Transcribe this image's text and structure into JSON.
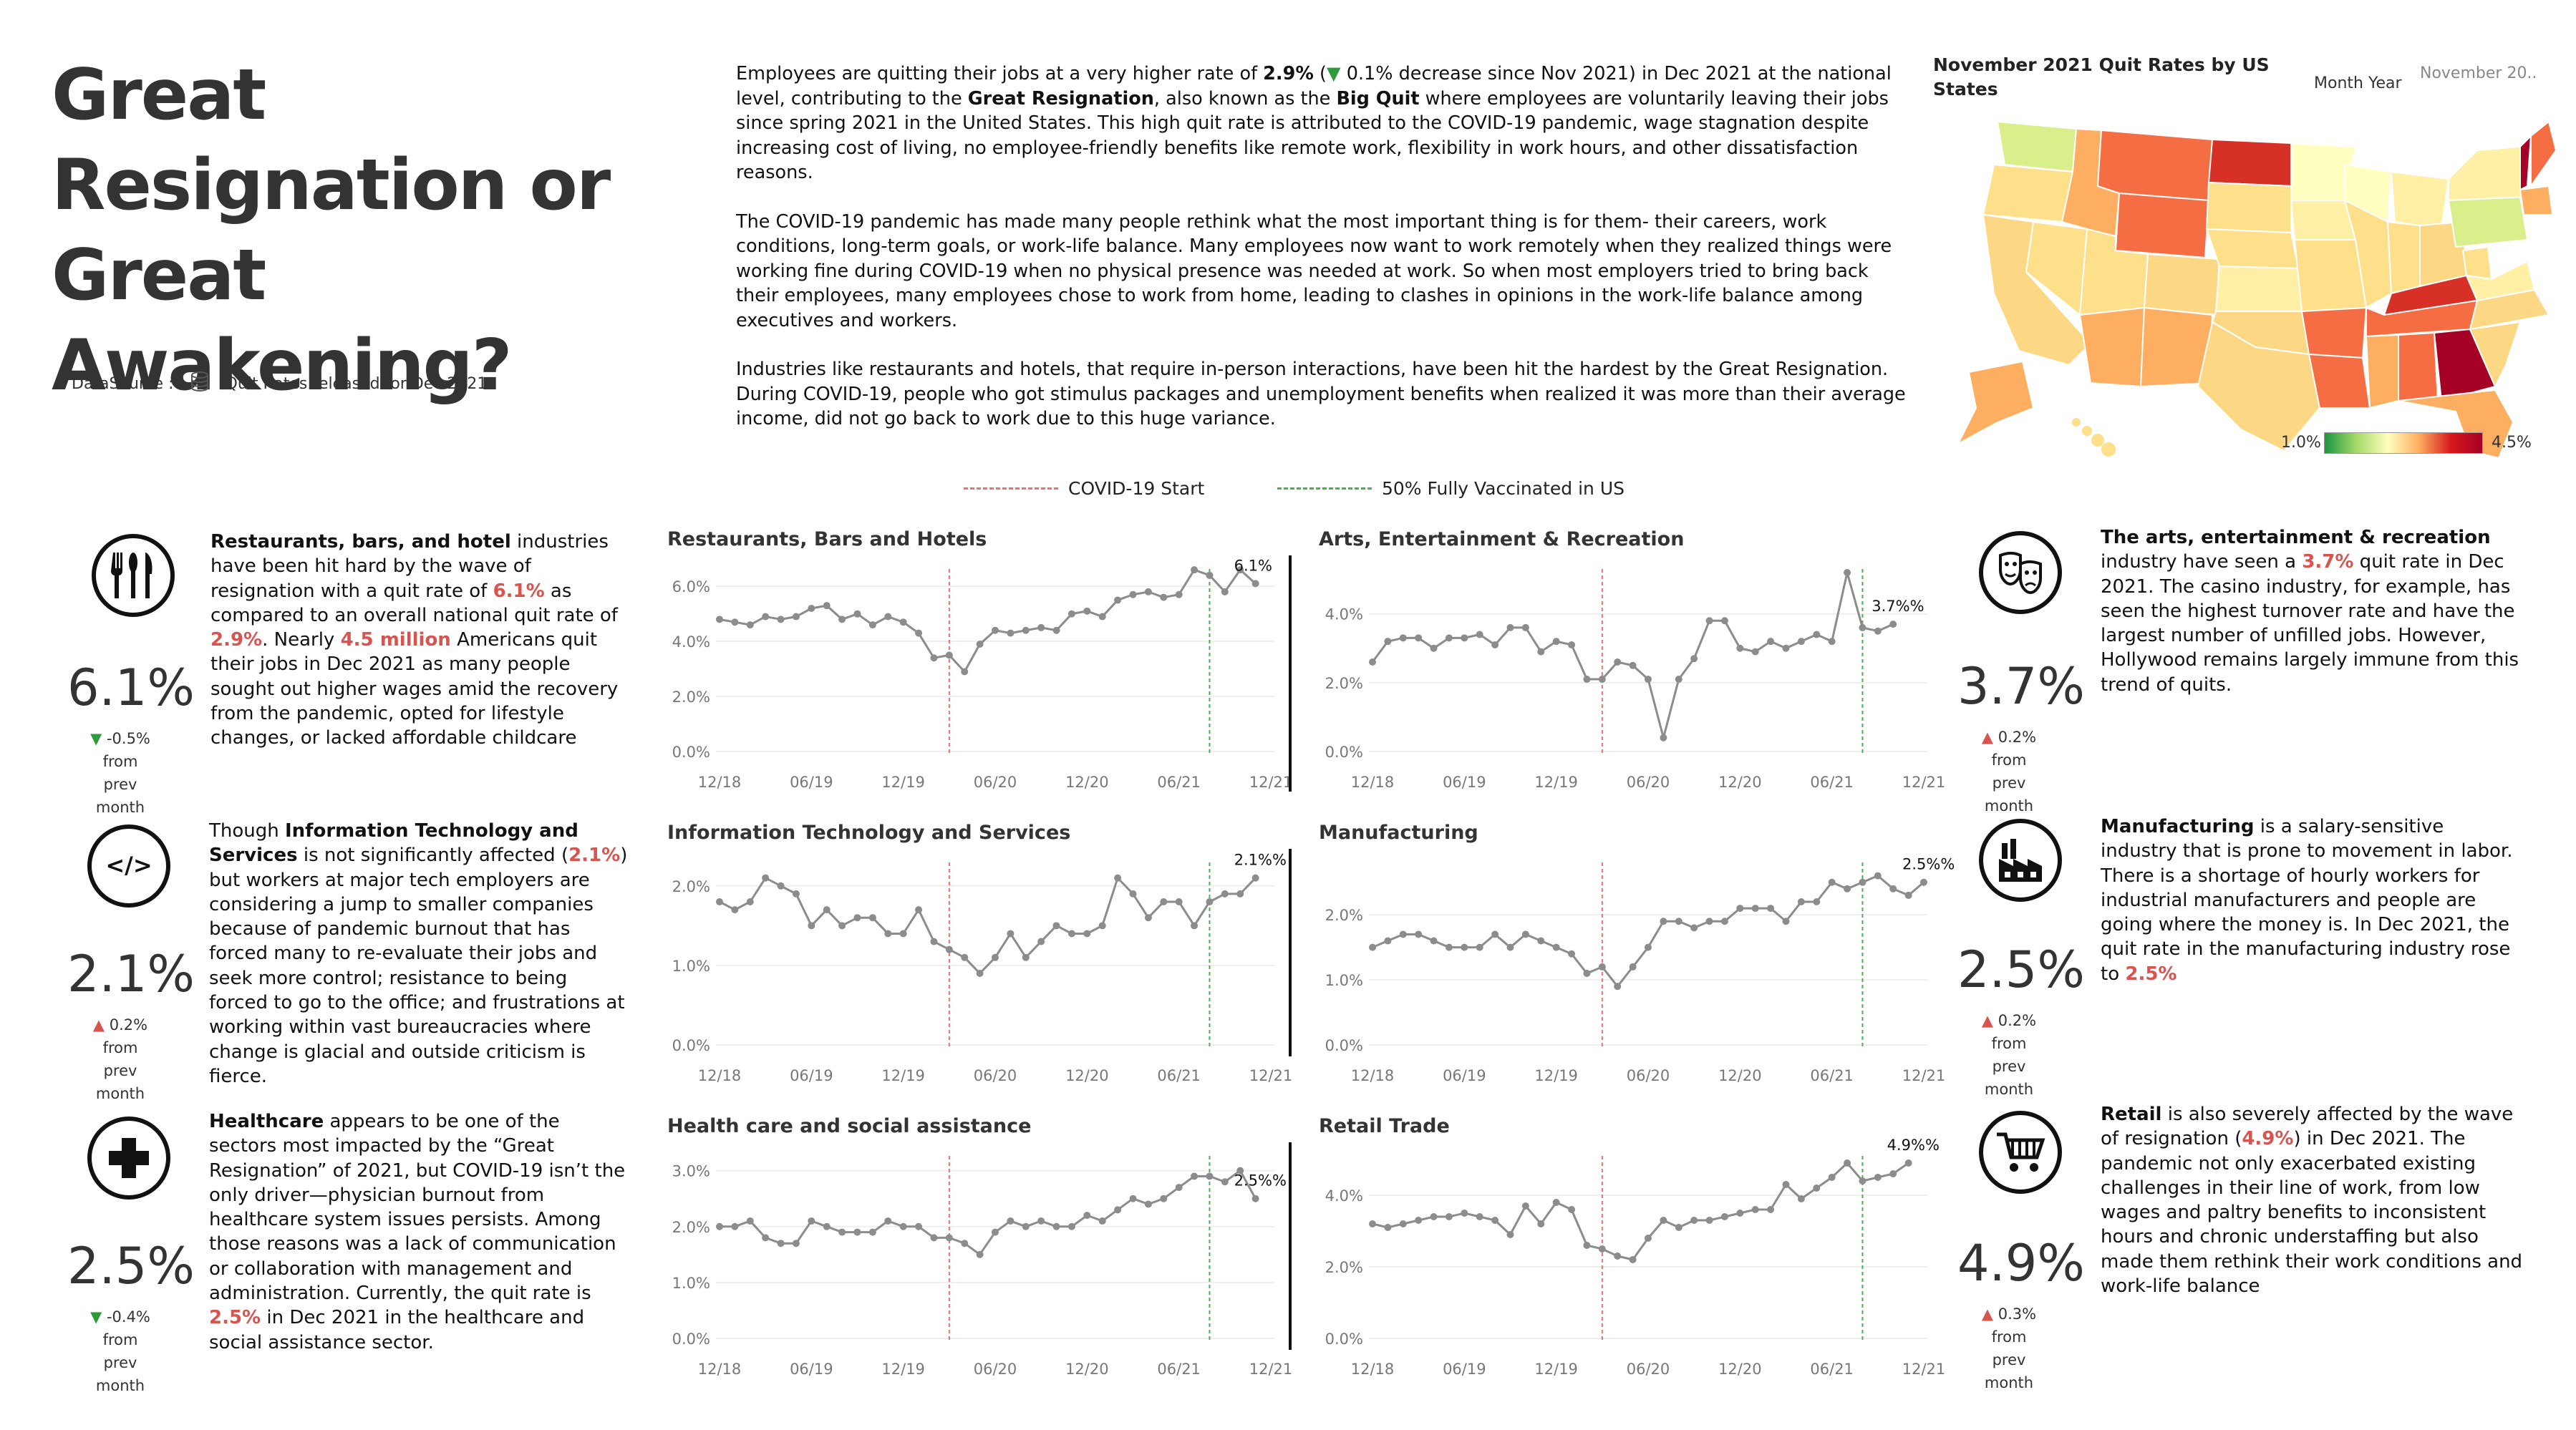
{
  "header": {
    "title": "Great Resignation or Great Awakening?",
    "datasource_label": "DataSource :",
    "datasource_value": "Quit Rates released for Dec 2021"
  },
  "intro": {
    "p1": [
      "Employees are quitting their jobs at a very higher rate of ",
      "2.9%",
      " (",
      "▼",
      " 0.1% decrease since Nov 2021) in Dec 2021 at the national level, contributing to the ",
      "Great Resignation",
      ", also known as the ",
      "Big Quit",
      " where employees are voluntarily leaving their jobs since spring 2021 in the United States. This high quit rate is attributed to the COVID-19 pandemic, wage stagnation despite increasing cost of living, no employee-friendly benefits like remote work, flexibility in work hours, and other dissatisfaction reasons."
    ],
    "p2": "The COVID-19 pandemic has made many people rethink what the most important thing is for them- their careers, work conditions, long-term goals, or work-life balance. Many employees now want to work remotely when they realized things were working fine during COVID-19 when no physical presence was needed at work. So when most employers tried to bring back their employees, many employees chose to work from home, leading to clashes in opinions in the work-life balance among executives and workers.",
    "p3": "Industries like restaurants and hotels, that require in-person interactions, have been hit the hardest by the Great Resignation. During COVID-19, people who got stimulus packages and unemployment benefits when realized it was more than their average income, did not go back to work due to this huge variance."
  },
  "map": {
    "title": "November 2021 Quit Rates by US States",
    "month_year_label": "Month Year",
    "month_year_value": "November 20..",
    "legend_min": "1.0%",
    "legend_max": "4.5%",
    "colors": {
      "low": "#1a9641",
      "mid": "#ffffbf",
      "high": "#a50026"
    }
  },
  "legend": {
    "covid": "COVID-19 Start",
    "vaccinated": "50% Fully Vaccinated in US",
    "covid_color": "#e57373",
    "vaccinated_color": "#4caf50"
  },
  "colors": {
    "line": "#8c8c8c",
    "red": "#d9534f",
    "green": "#2e9a3a"
  },
  "industries": {
    "restaurants": {
      "icon": "utensils-icon",
      "value": "6.1%",
      "delta_arrow": "▼",
      "delta_text": "-0.5% from",
      "delta_sub": "prev month",
      "desc": [
        "Restaurants, bars, and hotel",
        " industries have been hit hard by the wave of resignation with a quit rate of ",
        "6.1%",
        " as compared to an overall national quit rate of ",
        "2.9%",
        ". Nearly ",
        "4.5 million",
        " Americans quit their jobs in Dec 2021 as many people sought out higher wages amid the recovery from the pandemic, opted for lifestyle changes, or lacked affordable childcare"
      ]
    },
    "it": {
      "icon": "code-icon",
      "value": "2.1%",
      "delta_arrow": "▲",
      "delta_text": "0.2% from",
      "delta_sub": "prev month",
      "desc": [
        "Though ",
        "Information Technology and Services",
        " is not significantly affected (",
        "2.1%",
        ") but workers at major tech employers are considering a jump to smaller companies because of pandemic burnout that has forced many to re-evaluate their jobs and seek more control; resistance to being forced to go to the office; and frustrations at working within vast bureaucracies where change is glacial and outside criticism is fierce."
      ]
    },
    "healthcare": {
      "icon": "medical-cross-icon",
      "value": "2.5%",
      "delta_arrow": "▼",
      "delta_text": "-0.4% from",
      "delta_sub": "prev month",
      "desc": [
        "Healthcare",
        " appears to be one of the sectors most impacted by the “Great Resignation” of 2021, but COVID-19 isn’t the only driver—physician burnout from healthcare system issues persists. Among those reasons was a lack of communication or collaboration with management and administration. Currently, the quit rate is ",
        "2.5%",
        " in Dec 2021 in the healthcare and social assistance sector."
      ]
    },
    "arts": {
      "icon": "theater-masks-icon",
      "value": "3.7%",
      "delta_arrow": "▲",
      "delta_text": "0.2% from",
      "delta_sub": "prev month",
      "desc": [
        "The arts, entertainment & recreation",
        " industry have seen a ",
        "3.7%",
        " quit rate in Dec 2021. The casino industry, for example, has seen the highest turnover rate and have the largest number of unfilled jobs. However, Hollywood remains largely immune from this trend of quits."
      ]
    },
    "manufacturing": {
      "icon": "factory-icon",
      "value": "2.5%",
      "delta_arrow": "▲",
      "delta_text": "0.2% from",
      "delta_sub": "prev month",
      "desc": [
        "Manufacturing",
        " is a salary-sensitive industry that is prone to movement in labor. There is a shortage of hourly workers for industrial manufacturers and people are going where the money is. In Dec 2021, the quit rate in the manufacturing industry rose to ",
        "2.5%"
      ]
    },
    "retail": {
      "icon": "shopping-cart-icon",
      "value": "4.9%",
      "delta_arrow": "▲",
      "delta_text": "0.3% from",
      "delta_sub": "prev month",
      "desc": [
        "Retail",
        " is also severely affected by the wave of resignation (",
        "4.9%",
        ") in Dec 2021. The pandemic not only exacerbated existing challenges in their line of work, from low wages and paltry benefits to inconsistent hours and chronic understaffing but also made them rethink their work conditions and work-life balance"
      ]
    }
  },
  "chart_data": [
    {
      "type": "line",
      "title": "Restaurants, Bars and Hotels",
      "x_ticks": [
        "12/18",
        "06/19",
        "12/19",
        "06/20",
        "12/20",
        "06/21",
        "12/21"
      ],
      "y_ticks": [
        "0.0%",
        "2.0%",
        "4.0%",
        "6.0%"
      ],
      "ylim": [
        0,
        6.5
      ],
      "covid_start_index": 15,
      "vaccinated_index": 32,
      "end_label": "6.1%",
      "values": [
        4.8,
        4.7,
        4.6,
        4.9,
        4.8,
        4.9,
        5.2,
        5.3,
        4.8,
        5.0,
        4.6,
        4.9,
        4.7,
        4.3,
        3.4,
        3.5,
        2.9,
        3.9,
        4.4,
        4.3,
        4.4,
        4.5,
        4.4,
        5.0,
        5.1,
        4.9,
        5.5,
        5.7,
        5.8,
        5.6,
        5.7,
        6.6,
        6.4,
        5.8,
        6.6,
        6.1
      ]
    },
    {
      "type": "line",
      "title": "Arts, Entertainment & Recreation",
      "x_ticks": [
        "12/18",
        "06/19",
        "12/19",
        "06/20",
        "12/20",
        "06/21",
        "12/21"
      ],
      "y_ticks": [
        "0.0%",
        "2.0%",
        "4.0%"
      ],
      "ylim": [
        0,
        5.2
      ],
      "covid_start_index": 15,
      "vaccinated_index": 32,
      "end_label": "3.7%%",
      "values": [
        2.6,
        3.2,
        3.3,
        3.3,
        3.0,
        3.3,
        3.3,
        3.4,
        3.1,
        3.6,
        3.6,
        2.9,
        3.2,
        3.1,
        2.1,
        2.1,
        2.6,
        2.5,
        2.1,
        0.4,
        2.1,
        2.7,
        3.8,
        3.8,
        3.0,
        2.9,
        3.2,
        3.0,
        3.2,
        3.4,
        3.2,
        5.2,
        3.6,
        3.5,
        3.7
      ]
    },
    {
      "type": "line",
      "title": "Information Technology and Services",
      "x_ticks": [
        "12/18",
        "06/19",
        "12/19",
        "06/20",
        "12/20",
        "06/21",
        "12/21"
      ],
      "y_ticks": [
        "0.0%",
        "1.0%",
        "2.0%"
      ],
      "ylim": [
        0,
        2.25
      ],
      "covid_start_index": 15,
      "vaccinated_index": 32,
      "end_label": "2.1%%",
      "values": [
        1.8,
        1.7,
        1.8,
        2.1,
        2.0,
        1.9,
        1.5,
        1.7,
        1.5,
        1.6,
        1.6,
        1.4,
        1.4,
        1.7,
        1.3,
        1.2,
        1.1,
        0.9,
        1.1,
        1.4,
        1.1,
        1.3,
        1.5,
        1.4,
        1.4,
        1.5,
        2.1,
        1.9,
        1.6,
        1.8,
        1.8,
        1.5,
        1.8,
        1.9,
        1.9,
        2.1
      ]
    },
    {
      "type": "line",
      "title": "Manufacturing",
      "x_ticks": [
        "12/18",
        "06/19",
        "12/19",
        "06/20",
        "12/20",
        "06/21",
        "12/21"
      ],
      "y_ticks": [
        "0.0%",
        "1.0%",
        "2.0%"
      ],
      "ylim": [
        0,
        2.75
      ],
      "covid_start_index": 15,
      "vaccinated_index": 32,
      "end_label": "2.5%%",
      "values": [
        1.5,
        1.6,
        1.7,
        1.7,
        1.6,
        1.5,
        1.5,
        1.5,
        1.7,
        1.5,
        1.7,
        1.6,
        1.5,
        1.4,
        1.1,
        1.2,
        0.9,
        1.2,
        1.5,
        1.9,
        1.9,
        1.8,
        1.9,
        1.9,
        2.1,
        2.1,
        2.1,
        1.9,
        2.2,
        2.2,
        2.5,
        2.4,
        2.5,
        2.6,
        2.4,
        2.3,
        2.5
      ]
    },
    {
      "type": "line",
      "title": "Health care and social assistance",
      "x_ticks": [
        "12/18",
        "06/19",
        "12/19",
        "06/20",
        "12/20",
        "06/21",
        "12/21"
      ],
      "y_ticks": [
        "0.0%",
        "1.0%",
        "2.0%",
        "3.0%"
      ],
      "ylim": [
        0,
        3.2
      ],
      "covid_start_index": 15,
      "vaccinated_index": 32,
      "end_label": "2.5%%",
      "values": [
        2.0,
        2.0,
        2.1,
        1.8,
        1.7,
        1.7,
        2.1,
        2.0,
        1.9,
        1.9,
        1.9,
        2.1,
        2.0,
        2.0,
        1.8,
        1.8,
        1.7,
        1.5,
        1.9,
        2.1,
        2.0,
        2.1,
        2.0,
        2.0,
        2.2,
        2.1,
        2.3,
        2.5,
        2.4,
        2.5,
        2.7,
        2.9,
        2.9,
        2.8,
        3.0,
        2.5
      ]
    },
    {
      "type": "line",
      "title": "Retail Trade",
      "x_ticks": [
        "12/18",
        "06/19",
        "12/19",
        "06/20",
        "12/20",
        "06/21",
        "12/21"
      ],
      "y_ticks": [
        "0.0%",
        "2.0%",
        "4.0%"
      ],
      "ylim": [
        0,
        5.0
      ],
      "covid_start_index": 15,
      "vaccinated_index": 32,
      "end_label": "4.9%%",
      "values": [
        3.2,
        3.1,
        3.2,
        3.3,
        3.4,
        3.4,
        3.5,
        3.4,
        3.3,
        2.9,
        3.7,
        3.2,
        3.8,
        3.6,
        2.6,
        2.5,
        2.3,
        2.2,
        2.8,
        3.3,
        3.1,
        3.3,
        3.3,
        3.4,
        3.5,
        3.6,
        3.6,
        4.3,
        3.9,
        4.2,
        4.5,
        4.9,
        4.4,
        4.5,
        4.6,
        4.9
      ]
    }
  ]
}
